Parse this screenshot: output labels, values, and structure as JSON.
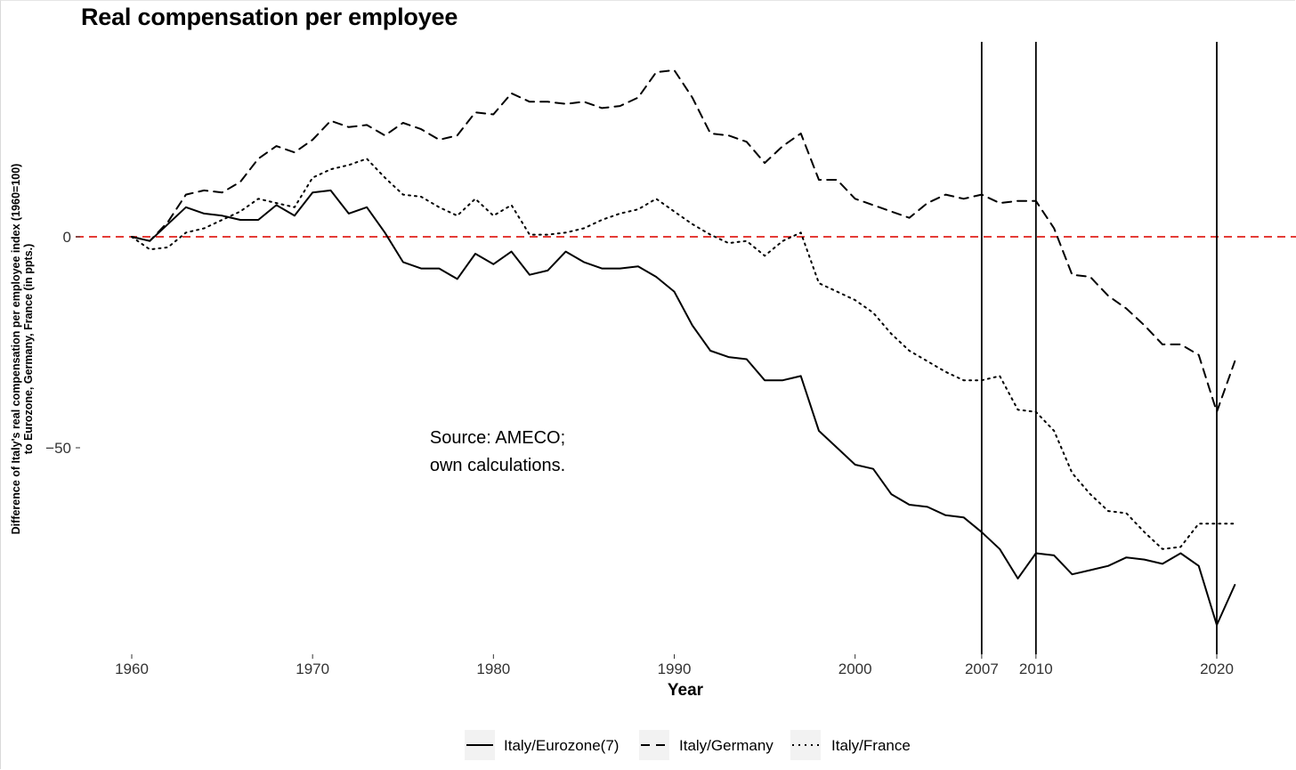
{
  "chart_data": {
    "type": "line",
    "title": "Real compensation per employee",
    "xlabel": "Year",
    "ylabel_lines": [
      "Difference of Italy's real compensation per employee index (1960=100)",
      "to Eurozone, Germany, France (in ppts.)"
    ],
    "xlim": [
      1956,
      2020
    ],
    "ylim": [
      -100,
      46
    ],
    "x_ticks": [
      1960,
      1970,
      1980,
      1990,
      2000,
      2007,
      2010,
      2020
    ],
    "y_ticks": [
      0,
      -50
    ],
    "x_tick_labels": [
      "1960",
      "1970",
      "1980",
      "1990",
      "2000",
      "2007",
      "2010",
      "2020"
    ],
    "y_tick_labels": [
      "0",
      "−50"
    ],
    "reference_line": {
      "y": 0,
      "color": "#e0201b",
      "style": "dashed"
    },
    "vertical_lines": [
      2007,
      2010,
      2020
    ],
    "annotation": [
      "Source: AMECO;",
      "own calculations."
    ],
    "legend_position": "bottom",
    "grid": false,
    "series": [
      {
        "name": "Italy/Eurozone(7)",
        "style": "solid",
        "x": [
          1960,
          1961,
          1962,
          1963,
          1964,
          1965,
          1966,
          1967,
          1968,
          1969,
          1970,
          1971,
          1972,
          1973,
          1974,
          1975,
          1976,
          1977,
          1978,
          1979,
          1980,
          1981,
          1982,
          1983,
          1984,
          1985,
          1986,
          1987,
          1988,
          1989,
          1990,
          1991,
          1992,
          1993,
          1994,
          1995,
          1996,
          1997,
          1998,
          1999,
          2000,
          2001,
          2002,
          2003,
          2004,
          2005,
          2006,
          2007,
          2008,
          2009,
          2010,
          2011,
          2012,
          2013,
          2014,
          2015,
          2016,
          2017,
          2018,
          2019,
          2020,
          2021
        ],
        "values": [
          0,
          -1,
          3,
          7,
          5.5,
          5,
          4,
          4,
          7.5,
          5,
          10.5,
          11,
          5.5,
          7,
          1,
          -6,
          -7.5,
          -7.5,
          -10,
          -4,
          -6.5,
          -3.5,
          -9,
          -8,
          -3.5,
          -6,
          -7.5,
          -7.5,
          -7,
          -9.5,
          -13,
          -21,
          -27,
          -28.5,
          -29,
          -34,
          -34,
          -33,
          -46,
          -50,
          -54,
          -55,
          -61,
          -63.5,
          -64,
          -66,
          -66.5,
          -70,
          -74,
          -81,
          -75,
          -75.5,
          -80,
          -79,
          -78,
          -76,
          -76.5,
          -77.5,
          -75,
          -78,
          -92,
          -82.5
        ]
      },
      {
        "name": "Italy/Germany",
        "style": "dashed",
        "x": [
          1960,
          1961,
          1962,
          1963,
          1964,
          1965,
          1966,
          1967,
          1968,
          1969,
          1970,
          1971,
          1972,
          1973,
          1974,
          1975,
          1976,
          1977,
          1978,
          1979,
          1980,
          1981,
          1982,
          1983,
          1984,
          1985,
          1986,
          1987,
          1988,
          1989,
          1990,
          1991,
          1992,
          1993,
          1994,
          1995,
          1996,
          1997,
          1998,
          1999,
          2000,
          2001,
          2002,
          2003,
          2004,
          2005,
          2006,
          2007,
          2008,
          2009,
          2010,
          2011,
          2012,
          2013,
          2014,
          2015,
          2016,
          2017,
          2018,
          2019,
          2020,
          2021
        ],
        "values": [
          0,
          -1,
          3.5,
          10,
          11,
          10.5,
          13,
          18.5,
          21.5,
          20,
          23,
          27.5,
          26,
          26.5,
          24,
          27,
          25.5,
          23,
          24,
          29.5,
          29,
          34,
          32,
          32,
          31.5,
          32,
          30.5,
          31,
          33,
          39,
          39.5,
          33,
          24.5,
          24,
          22.5,
          17.5,
          21.5,
          24.5,
          13.5,
          13.5,
          9,
          7.5,
          6,
          4.5,
          8,
          10,
          9,
          10,
          8,
          8.5,
          8.5,
          2,
          -9,
          -9.5,
          -14,
          -17,
          -21,
          -25.5,
          -25.5,
          -28,
          -41.5,
          -29.5
        ]
      },
      {
        "name": "Italy/France",
        "style": "dotted",
        "x": [
          1960,
          1961,
          1962,
          1963,
          1964,
          1965,
          1966,
          1967,
          1968,
          1969,
          1970,
          1971,
          1972,
          1973,
          1974,
          1975,
          1976,
          1977,
          1978,
          1979,
          1980,
          1981,
          1982,
          1983,
          1984,
          1985,
          1986,
          1987,
          1988,
          1989,
          1990,
          1991,
          1992,
          1993,
          1994,
          1995,
          1996,
          1997,
          1998,
          1999,
          2000,
          2001,
          2002,
          2003,
          2004,
          2005,
          2006,
          2007,
          2008,
          2009,
          2010,
          2011,
          2012,
          2013,
          2014,
          2015,
          2016,
          2017,
          2018,
          2019,
          2020,
          2021
        ],
        "values": [
          0,
          -3,
          -2.5,
          1,
          2,
          4,
          6,
          9,
          8,
          7,
          14,
          16,
          17,
          18.5,
          14,
          10,
          9.5,
          7,
          5,
          9,
          5,
          7.5,
          0.5,
          0.5,
          1,
          2,
          4,
          5.5,
          6.5,
          9,
          6,
          3,
          0.5,
          -1.5,
          -1,
          -4.5,
          -1,
          1,
          -11,
          -13,
          -15,
          -18,
          -23,
          -27,
          -29.5,
          -32,
          -34,
          -34,
          -33,
          -41,
          -41.5,
          -46,
          -56,
          -61,
          -65,
          -65.5,
          -70,
          -74,
          -73.5,
          -68,
          -68,
          -68
        ]
      }
    ]
  }
}
